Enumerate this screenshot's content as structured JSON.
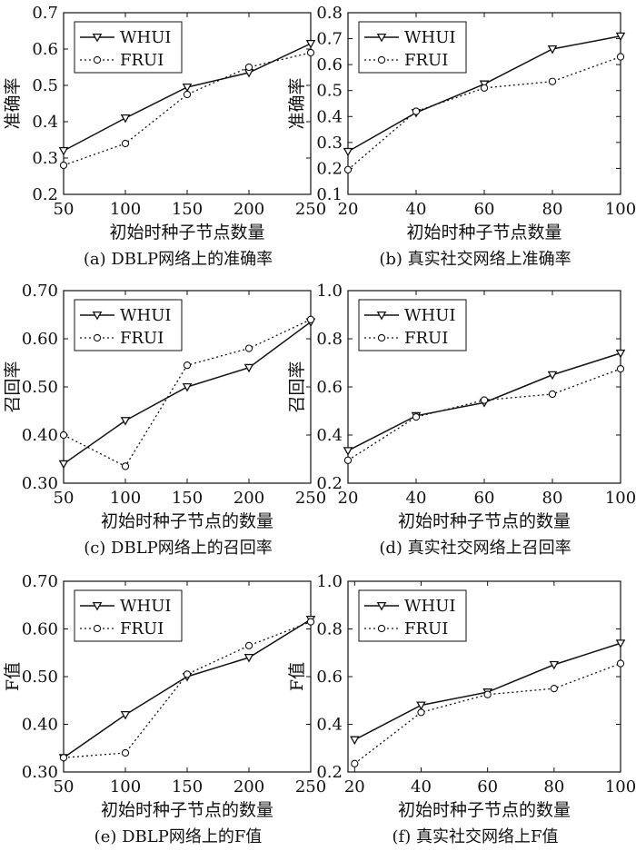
{
  "chart_data": [
    {
      "type": "line",
      "caption": "(a) DBLP网络上的准确率",
      "xlabel": "初始时种子节点数量",
      "ylabel": "准确率",
      "x": [
        50,
        100,
        150,
        200,
        250
      ],
      "xticks": [
        "50",
        "100",
        "150",
        "200",
        "250"
      ],
      "xlim": [
        50,
        250
      ],
      "yticks": [
        "0.2",
        "0.3",
        "0.4",
        "0.5",
        "0.6",
        "0.7"
      ],
      "ylim": [
        0.2,
        0.7
      ],
      "legend_position": "top-left",
      "series": [
        {
          "name": "WHUI",
          "values": [
            0.32,
            0.41,
            0.495,
            0.535,
            0.615
          ]
        },
        {
          "name": "FRUI",
          "values": [
            0.28,
            0.34,
            0.475,
            0.55,
            0.59
          ]
        }
      ]
    },
    {
      "type": "line",
      "caption": "(b) 真实社交网络上准确率",
      "xlabel": "初始时种子节点数量",
      "ylabel": "准确率",
      "x": [
        20,
        40,
        60,
        80,
        100
      ],
      "xticks": [
        "20",
        "40",
        "60",
        "80",
        "100"
      ],
      "xlim": [
        20,
        100
      ],
      "yticks": [
        "0.1",
        "0.2",
        "0.3",
        "0.4",
        "0.5",
        "0.6",
        "0.7",
        "0.8"
      ],
      "ylim": [
        0.1,
        0.8
      ],
      "legend_position": "top-left",
      "series": [
        {
          "name": "WHUI",
          "values": [
            0.265,
            0.415,
            0.525,
            0.66,
            0.71
          ]
        },
        {
          "name": "FRUI",
          "values": [
            0.195,
            0.42,
            0.51,
            0.535,
            0.63
          ]
        }
      ]
    },
    {
      "type": "line",
      "caption": "(c) DBLP网络上的召回率",
      "xlabel": "初始时种子节点的数量",
      "ylabel": "召回率",
      "x": [
        50,
        100,
        150,
        200,
        250
      ],
      "xticks": [
        "50",
        "100",
        "150",
        "200",
        "250"
      ],
      "xlim": [
        50,
        250
      ],
      "yticks": [
        "0.30",
        "0.40",
        "0.50",
        "0.60",
        "0.70"
      ],
      "ylim": [
        0.3,
        0.7
      ],
      "legend_position": "top-left",
      "series": [
        {
          "name": "WHUI",
          "values": [
            0.34,
            0.43,
            0.5,
            0.54,
            0.635
          ]
        },
        {
          "name": "FRUI",
          "values": [
            0.4,
            0.335,
            0.545,
            0.58,
            0.64
          ]
        }
      ]
    },
    {
      "type": "line",
      "caption": "(d) 真实社交网络上召回率",
      "xlabel": "初始时种子节点的数量",
      "ylabel": "召回率",
      "x": [
        20,
        40,
        60,
        80,
        100
      ],
      "xticks": [
        "20",
        "40",
        "60",
        "80",
        "100"
      ],
      "xlim": [
        20,
        100
      ],
      "yticks": [
        "0.2",
        "0.4",
        "0.6",
        "0.8",
        "1.0"
      ],
      "ylim": [
        0.2,
        1.0
      ],
      "legend_position": "top-left",
      "series": [
        {
          "name": "WHUI",
          "values": [
            0.335,
            0.48,
            0.535,
            0.65,
            0.74
          ]
        },
        {
          "name": "FRUI",
          "values": [
            0.295,
            0.475,
            0.545,
            0.57,
            0.675
          ]
        }
      ]
    },
    {
      "type": "line",
      "caption": "(e) DBLP网络上的F值",
      "xlabel": "初始时种子节点的数量",
      "ylabel": "F值",
      "x": [
        50,
        100,
        150,
        200,
        250
      ],
      "xticks": [
        "50",
        "100",
        "150",
        "200",
        "250"
      ],
      "xlim": [
        50,
        250
      ],
      "yticks": [
        "0.30",
        "0.40",
        "0.50",
        "0.60",
        "0.70"
      ],
      "ylim": [
        0.3,
        0.7
      ],
      "legend_position": "top-left",
      "series": [
        {
          "name": "WHUI",
          "values": [
            0.33,
            0.42,
            0.5,
            0.54,
            0.62
          ]
        },
        {
          "name": "FRUI",
          "values": [
            0.33,
            0.34,
            0.505,
            0.565,
            0.615
          ]
        }
      ]
    },
    {
      "type": "line",
      "caption": "(f) 真实社交网络上F值",
      "xlabel": "初始时种子节点的数量",
      "ylabel": "F值",
      "x": [
        20,
        40,
        60,
        80,
        100
      ],
      "xticks": [
        "20",
        "40",
        "60",
        "80",
        "100"
      ],
      "xlim": [
        18,
        100
      ],
      "yticks": [
        "0.2",
        "0.4",
        "0.6",
        "0.8",
        "1.0"
      ],
      "ylim": [
        0.2,
        1.0
      ],
      "legend_position": "top-left",
      "series": [
        {
          "name": "WHUI",
          "values": [
            0.335,
            0.48,
            0.535,
            0.65,
            0.74
          ]
        },
        {
          "name": "FRUI",
          "values": [
            0.235,
            0.45,
            0.525,
            0.55,
            0.655
          ]
        }
      ]
    }
  ]
}
